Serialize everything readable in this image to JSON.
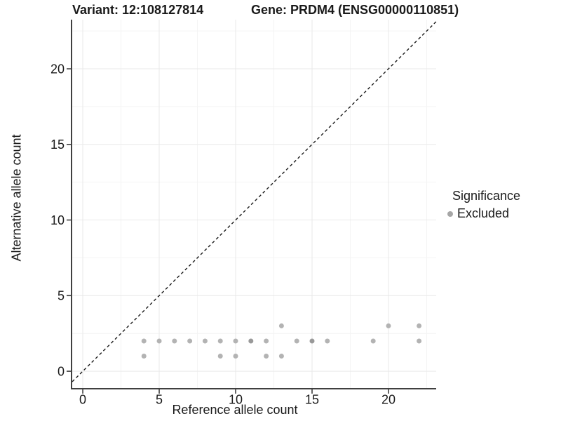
{
  "header": {
    "variant_title": "Variant: 12:108127814",
    "gene_title": "Gene: PRDM4 (ENSG00000110851)"
  },
  "chart_data": {
    "type": "scatter",
    "title_left": "Variant: 12:108127814",
    "title_right": "Gene: PRDM4 (ENSG00000110851)",
    "xlabel": "Reference allele count",
    "ylabel": "Alternative allele count",
    "axes": {
      "xlim": [
        -0.69,
        23.12
      ],
      "ylim": [
        -1.11,
        23.25
      ],
      "x_ticks": [
        0,
        5,
        10,
        15,
        20
      ],
      "y_ticks": [
        0,
        5,
        10,
        15,
        20
      ],
      "x_minor_ticks": [
        2.5,
        7.5,
        12.5,
        17.5,
        22.5
      ],
      "y_minor_ticks": [
        2.5,
        7.5,
        12.5,
        17.5,
        22.5
      ],
      "grid": "major-and-minor"
    },
    "identity_line": {
      "equation": "y = x",
      "slope": 1,
      "intercept": 0,
      "style": "dashed",
      "color": "#1a1a1a"
    },
    "series": [
      {
        "name": "Excluded",
        "color": "#b3b3b3",
        "points": [
          {
            "x": 4,
            "y": 1
          },
          {
            "x": 9,
            "y": 1
          },
          {
            "x": 10,
            "y": 1
          },
          {
            "x": 12,
            "y": 1
          },
          {
            "x": 13,
            "y": 1
          },
          {
            "x": 4,
            "y": 2
          },
          {
            "x": 5,
            "y": 2
          },
          {
            "x": 6,
            "y": 2
          },
          {
            "x": 7,
            "y": 2
          },
          {
            "x": 8,
            "y": 2
          },
          {
            "x": 9,
            "y": 2
          },
          {
            "x": 10,
            "y": 2
          },
          {
            "x": 11,
            "y": 2,
            "n": 2
          },
          {
            "x": 12,
            "y": 2
          },
          {
            "x": 14,
            "y": 2
          },
          {
            "x": 15,
            "y": 2,
            "n": 2
          },
          {
            "x": 16,
            "y": 2
          },
          {
            "x": 19,
            "y": 2
          },
          {
            "x": 22,
            "y": 2
          },
          {
            "x": 13,
            "y": 3
          },
          {
            "x": 20,
            "y": 3
          },
          {
            "x": 22,
            "y": 3
          }
        ]
      }
    ],
    "legend": {
      "title": "Significance",
      "position": "right",
      "items": [
        {
          "label": "Excluded",
          "color": "#a6a6a6"
        }
      ]
    }
  },
  "style": {
    "point_color": "#b3b3b3",
    "point_overlap_color": "#999999",
    "grid_major_color": "#e9e9e9",
    "grid_minor_color": "#f4f4f4",
    "axis_line_color": "#404040",
    "tick_color": "#333333",
    "text_color": "#1a1a1a",
    "background": "#ffffff"
  }
}
